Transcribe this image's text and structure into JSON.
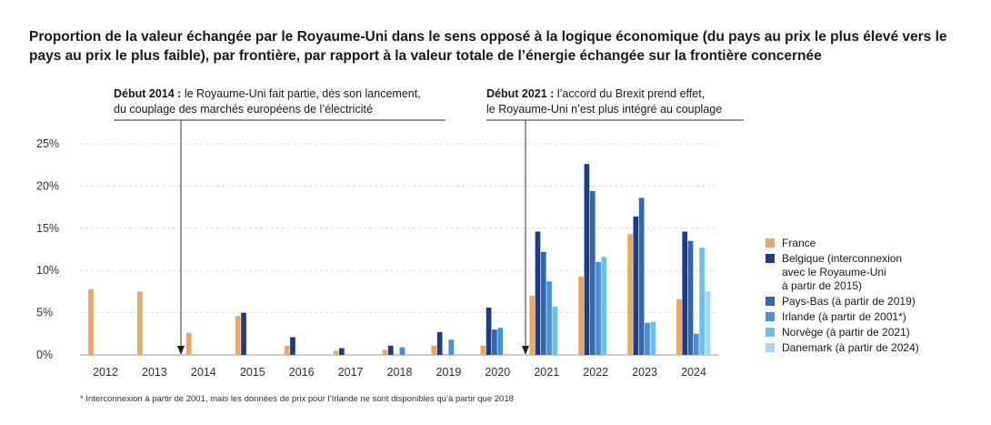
{
  "title": "Proportion de la valeur échangée par le Royaume-Uni dans le sens opposé à la logique économique (du pays au prix le plus élevé vers le pays au prix le plus faible), par frontière, par rapport à la valeur totale de l’énergie échangée sur la frontière concernée",
  "annotations": [
    {
      "bold": "Début 2014 :",
      "line1": " le Royaume-Uni fait partie, dès son lancement,",
      "line2": "du couplage des marchés européens de l’électricité"
    },
    {
      "bold": "Début 2021 :",
      "line1": " l’accord du Brexit prend effet,",
      "line2": "le Royaume-Uni n’est plus intégré au couplage"
    }
  ],
  "footnote": "* Interconnexion à partir de 2001, mais les données de prix pour l’Irlande ne sont disponibles qu’à partir que 2018",
  "chart_data": {
    "type": "bar",
    "title": "Proportion de la valeur échangée par le Royaume-Uni dans le sens opposé à la logique économique",
    "xlabel": "",
    "ylabel": "",
    "ylim": [
      0,
      25
    ],
    "yticks": [
      "0%",
      "5%",
      "10%",
      "15%",
      "20%",
      "25%"
    ],
    "ytick_values": [
      0,
      5,
      10,
      15,
      20,
      25
    ],
    "categories": [
      "2012",
      "2013",
      "2014",
      "2015",
      "2016",
      "2017",
      "2018",
      "2019",
      "2020",
      "2021",
      "2022",
      "2023",
      "2024"
    ],
    "grid": true,
    "legend_position": "right",
    "series": [
      {
        "name": "France",
        "color": "#e9a963",
        "values": [
          7.8,
          7.5,
          2.6,
          4.6,
          1.1,
          0.5,
          0.6,
          1.1,
          1.1,
          7.0,
          9.3,
          14.3,
          6.6
        ]
      },
      {
        "name": "Belgique (interconnexion avec le Royaume-Uni à partir de 2015)",
        "color": "#1d3b87",
        "values": [
          null,
          null,
          null,
          5.0,
          2.1,
          0.8,
          1.1,
          2.7,
          5.6,
          14.6,
          22.6,
          16.4,
          14.6
        ]
      },
      {
        "name": "Pays-Bas (à partir de 2019)",
        "color": "#3267b5",
        "values": [
          null,
          null,
          null,
          null,
          null,
          null,
          null,
          null,
          3.0,
          12.2,
          19.4,
          18.6,
          13.5
        ]
      },
      {
        "name": "Irlande (à partir de 2001*)",
        "color": "#4990d6",
        "values": [
          null,
          null,
          null,
          null,
          null,
          null,
          0.9,
          1.8,
          3.2,
          8.7,
          11.0,
          3.8,
          2.5
        ]
      },
      {
        "name": "Norvège (à partir de 2021)",
        "color": "#6ec0e8",
        "values": [
          null,
          null,
          null,
          null,
          null,
          null,
          null,
          null,
          null,
          5.7,
          11.6,
          3.9,
          12.7
        ]
      },
      {
        "name": "Danemark (à partir de 2024)",
        "color": "#a8d8f0",
        "values": [
          null,
          null,
          null,
          null,
          null,
          null,
          null,
          null,
          null,
          null,
          null,
          null,
          7.5
        ]
      }
    ],
    "legend": [
      {
        "lines": [
          "France"
        ],
        "color": "#e9a963"
      },
      {
        "lines": [
          "Belgique (interconnexion",
          "avec le Royaume-Uni",
          "à partir de 2015)"
        ],
        "color": "#1d3b87"
      },
      {
        "lines": [
          "Pays-Bas (à partir de 2019)"
        ],
        "color": "#3267b5"
      },
      {
        "lines": [
          "Irlande (à partir de 2001*)"
        ],
        "color": "#4990d6"
      },
      {
        "lines": [
          "Norvège (à partir de 2021)"
        ],
        "color": "#6ec0e8"
      },
      {
        "lines": [
          "Danemark (à partir de 2024)"
        ],
        "color": "#a8d8f0"
      }
    ]
  }
}
